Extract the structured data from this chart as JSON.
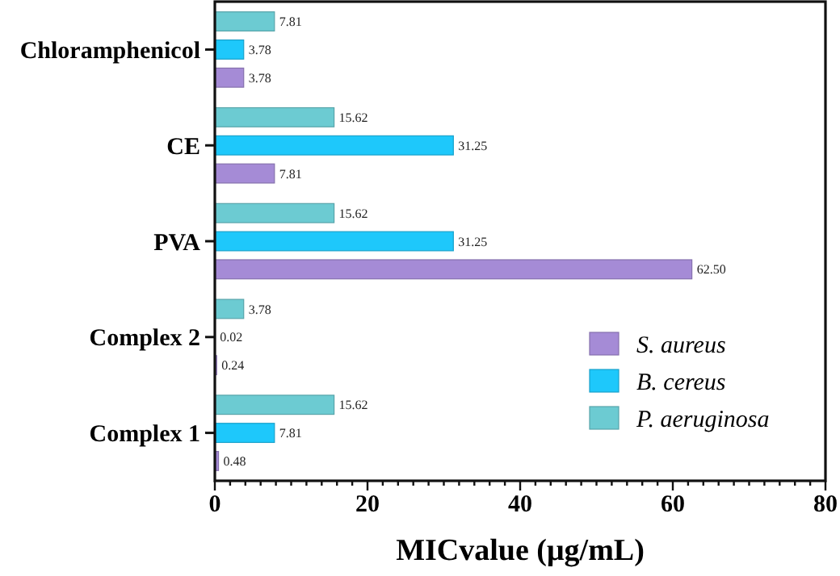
{
  "chart_data": {
    "type": "bar",
    "orientation": "horizontal",
    "categories": [
      "Chloramphenicol",
      "CE",
      "PVA",
      "Complex 2",
      "Complex 1"
    ],
    "series": [
      {
        "name": "S. aureus",
        "color": "#a58bd6",
        "values": [
          3.78,
          7.81,
          62.5,
          0.24,
          0.48
        ],
        "value_labels": [
          "3.78",
          "7.81",
          "62.50",
          "0.24",
          "0.48"
        ]
      },
      {
        "name": "B. cereus",
        "color": "#1ec8fb",
        "values": [
          3.78,
          31.25,
          31.25,
          0.02,
          7.81
        ],
        "value_labels": [
          "3.78",
          "31.25",
          "31.25",
          "0.02",
          "7.81"
        ]
      },
      {
        "name": "P. aeruginosa",
        "color": "#6ccbd2",
        "values": [
          7.81,
          15.62,
          15.62,
          3.78,
          15.62
        ],
        "value_labels": [
          "7.81",
          "15.62",
          "15.62",
          "3.78",
          "15.62"
        ]
      }
    ],
    "xlabel": "MICvalue (μg/mL)",
    "xlim": [
      0,
      80
    ],
    "xticks": [
      0,
      {
        "value": 2,
        "label": null
      },
      {
        "value": 4,
        "label": null
      },
      {
        "value": 6,
        "label": null
      },
      {
        "value": 8,
        "label": null
      },
      {
        "value": 10,
        "label": null
      },
      {
        "value": 12,
        "label": null
      },
      {
        "value": 14,
        "label": null
      },
      {
        "value": 16,
        "label": null
      },
      {
        "value": 18,
        "label": null
      },
      20,
      {
        "value": 22,
        "label": null
      },
      {
        "value": 24,
        "label": null
      },
      {
        "value": 26,
        "label": null
      },
      {
        "value": 28,
        "label": null
      },
      {
        "value": 30,
        "label": null
      },
      {
        "value": 32,
        "label": null
      },
      {
        "value": 34,
        "label": null
      },
      {
        "value": 36,
        "label": null
      },
      {
        "value": 38,
        "label": null
      },
      40,
      {
        "value": 42,
        "label": null
      },
      {
        "value": 44,
        "label": null
      },
      {
        "value": 46,
        "label": null
      },
      {
        "value": 48,
        "label": null
      },
      {
        "value": 50,
        "label": null
      },
      {
        "value": 52,
        "label": null
      },
      {
        "value": 54,
        "label": null
      },
      {
        "value": 56,
        "label": null
      },
      {
        "value": 58,
        "label": null
      },
      60,
      {
        "value": 62,
        "label": null
      },
      {
        "value": 64,
        "label": null
      },
      {
        "value": 66,
        "label": null
      },
      {
        "value": 68,
        "label": null
      },
      {
        "value": 70,
        "label": null
      },
      {
        "value": 72,
        "label": null
      },
      {
        "value": 74,
        "label": null
      },
      {
        "value": 76,
        "label": null
      },
      {
        "value": 78,
        "label": null
      },
      80
    ],
    "legend": "bottom right",
    "grid": false
  }
}
